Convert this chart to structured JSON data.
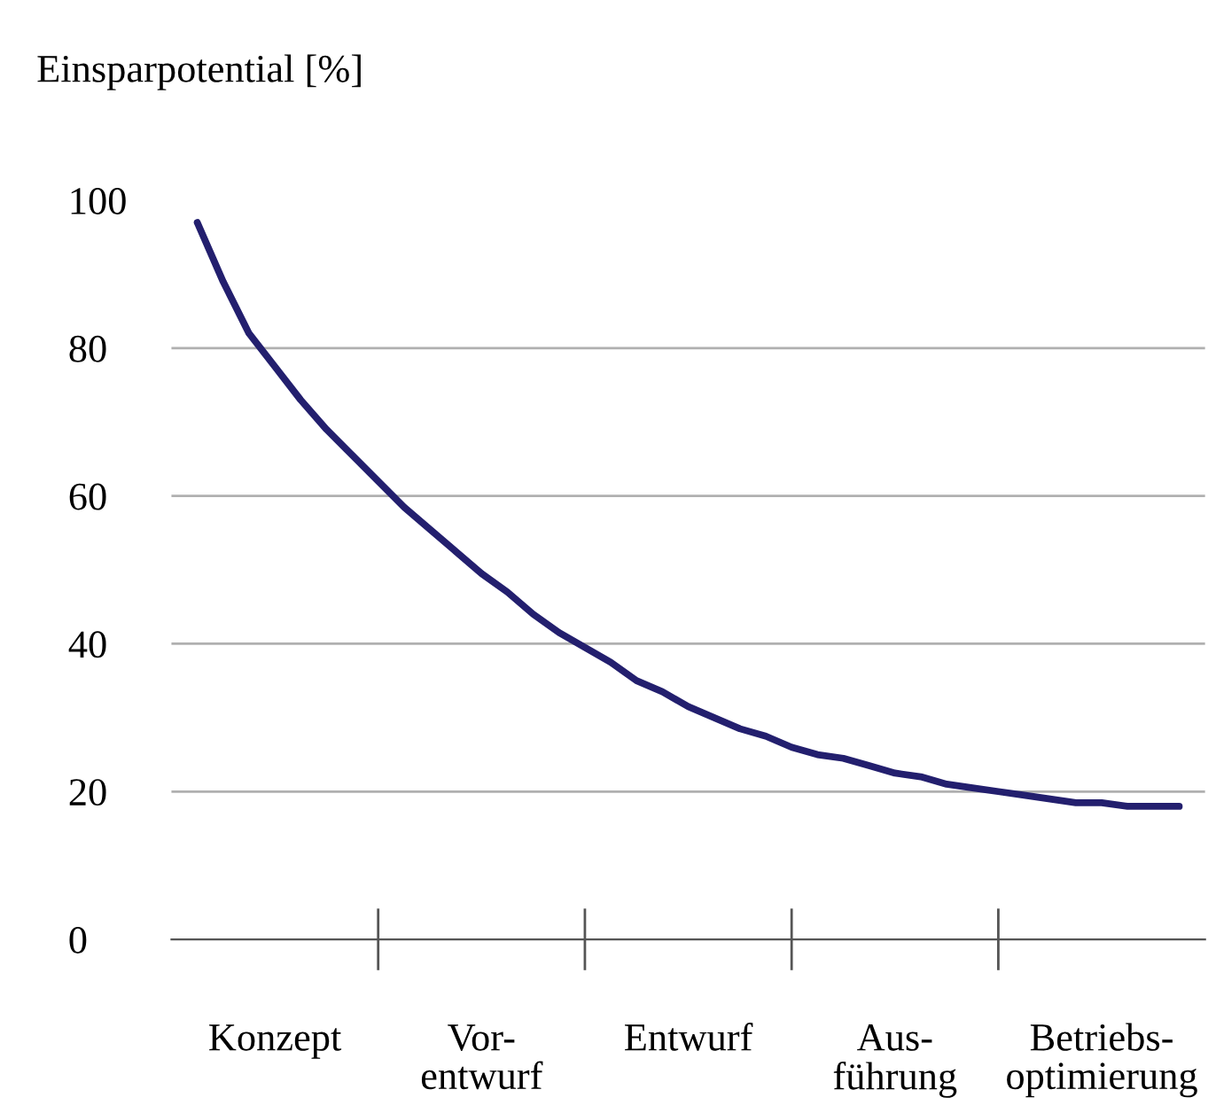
{
  "chart_data": {
    "type": "line",
    "ylabel": "Einsparpotential [%]",
    "categories": [
      null,
      null,
      null,
      "Konzept",
      null,
      null,
      null,
      null,
      null,
      null,
      null,
      "Vor-\nentwurf",
      null,
      null,
      null,
      null,
      null,
      null,
      null,
      "Entwurf",
      null,
      null,
      null,
      null,
      null,
      null,
      null,
      "Aus-\nführung",
      null,
      null,
      null,
      null,
      null,
      null,
      null,
      "Betriebs-\noptimierung",
      null,
      null,
      null
    ],
    "series": [
      {
        "color": "#231f6e",
        "values": [
          97,
          89,
          82,
          77.5,
          73,
          69,
          65.5,
          62,
          58.5,
          55.5,
          52.5,
          49.5,
          47,
          44,
          41.5,
          39.5,
          37.5,
          35,
          33.5,
          31.5,
          30,
          28.5,
          27.5,
          26,
          25,
          24.5,
          23.5,
          22.5,
          22,
          21,
          20.5,
          20,
          19.5,
          19,
          18.5,
          18.5,
          18,
          18,
          18
        ]
      }
    ],
    "ylim": [
      0,
      100
    ],
    "yticks": [
      0,
      20,
      40,
      60,
      80,
      100
    ],
    "grid": "y",
    "marker": "none",
    "line_style": "solid"
  }
}
